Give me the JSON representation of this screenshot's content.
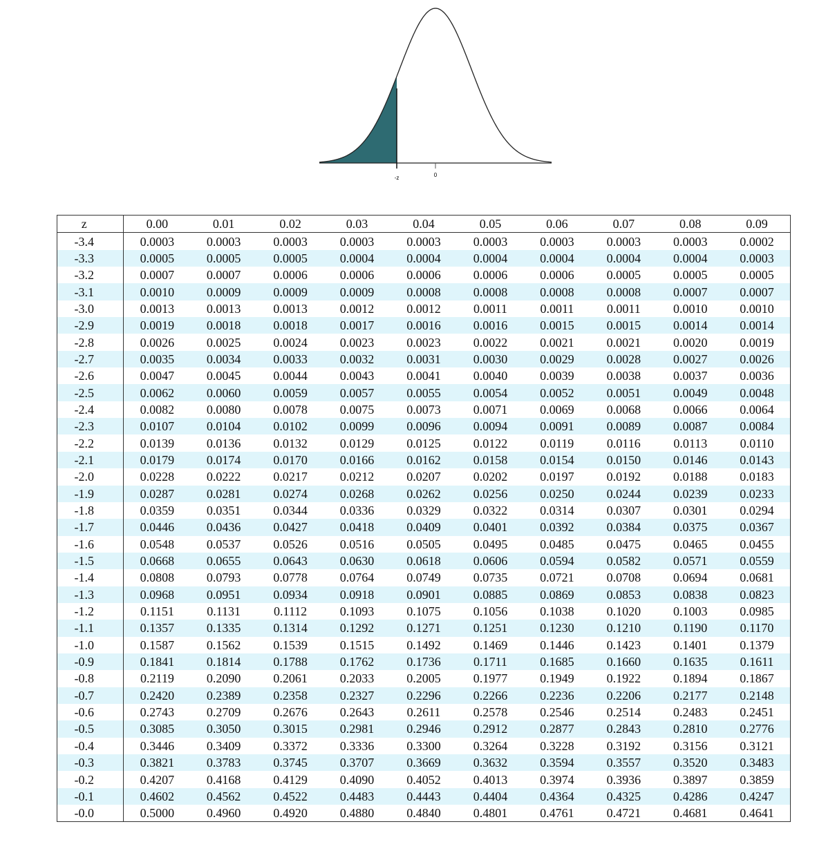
{
  "figure": {
    "neg_label": "-z",
    "zero_label": "0",
    "shade_color": "#2e6b72"
  },
  "table": {
    "corner_label": "z",
    "columns": [
      "0.00",
      "0.01",
      "0.02",
      "0.03",
      "0.04",
      "0.05",
      "0.06",
      "0.07",
      "0.08",
      "0.09"
    ],
    "rows": [
      {
        "z": "-3.4",
        "values": [
          "0.0003",
          "0.0003",
          "0.0003",
          "0.0003",
          "0.0003",
          "0.0003",
          "0.0003",
          "0.0003",
          "0.0003",
          "0.0002"
        ]
      },
      {
        "z": "-3.3",
        "values": [
          "0.0005",
          "0.0005",
          "0.0005",
          "0.0004",
          "0.0004",
          "0.0004",
          "0.0004",
          "0.0004",
          "0.0004",
          "0.0003"
        ]
      },
      {
        "z": "-3.2",
        "values": [
          "0.0007",
          "0.0007",
          "0.0006",
          "0.0006",
          "0.0006",
          "0.0006",
          "0.0006",
          "0.0005",
          "0.0005",
          "0.0005"
        ]
      },
      {
        "z": "-3.1",
        "values": [
          "0.0010",
          "0.0009",
          "0.0009",
          "0.0009",
          "0.0008",
          "0.0008",
          "0.0008",
          "0.0008",
          "0.0007",
          "0.0007"
        ]
      },
      {
        "z": "-3.0",
        "values": [
          "0.0013",
          "0.0013",
          "0.0013",
          "0.0012",
          "0.0012",
          "0.0011",
          "0.0011",
          "0.0011",
          "0.0010",
          "0.0010"
        ]
      },
      {
        "z": "-2.9",
        "values": [
          "0.0019",
          "0.0018",
          "0.0018",
          "0.0017",
          "0.0016",
          "0.0016",
          "0.0015",
          "0.0015",
          "0.0014",
          "0.0014"
        ]
      },
      {
        "z": "-2.8",
        "values": [
          "0.0026",
          "0.0025",
          "0.0024",
          "0.0023",
          "0.0023",
          "0.0022",
          "0.0021",
          "0.0021",
          "0.0020",
          "0.0019"
        ]
      },
      {
        "z": "-2.7",
        "values": [
          "0.0035",
          "0.0034",
          "0.0033",
          "0.0032",
          "0.0031",
          "0.0030",
          "0.0029",
          "0.0028",
          "0.0027",
          "0.0026"
        ]
      },
      {
        "z": "-2.6",
        "values": [
          "0.0047",
          "0.0045",
          "0.0044",
          "0.0043",
          "0.0041",
          "0.0040",
          "0.0039",
          "0.0038",
          "0.0037",
          "0.0036"
        ]
      },
      {
        "z": "-2.5",
        "values": [
          "0.0062",
          "0.0060",
          "0.0059",
          "0.0057",
          "0.0055",
          "0.0054",
          "0.0052",
          "0.0051",
          "0.0049",
          "0.0048"
        ]
      },
      {
        "z": "-2.4",
        "values": [
          "0.0082",
          "0.0080",
          "0.0078",
          "0.0075",
          "0.0073",
          "0.0071",
          "0.0069",
          "0.0068",
          "0.0066",
          "0.0064"
        ]
      },
      {
        "z": "-2.3",
        "values": [
          "0.0107",
          "0.0104",
          "0.0102",
          "0.0099",
          "0.0096",
          "0.0094",
          "0.0091",
          "0.0089",
          "0.0087",
          "0.0084"
        ]
      },
      {
        "z": "-2.2",
        "values": [
          "0.0139",
          "0.0136",
          "0.0132",
          "0.0129",
          "0.0125",
          "0.0122",
          "0.0119",
          "0.0116",
          "0.0113",
          "0.0110"
        ]
      },
      {
        "z": "-2.1",
        "values": [
          "0.0179",
          "0.0174",
          "0.0170",
          "0.0166",
          "0.0162",
          "0.0158",
          "0.0154",
          "0.0150",
          "0.0146",
          "0.0143"
        ]
      },
      {
        "z": "-2.0",
        "values": [
          "0.0228",
          "0.0222",
          "0.0217",
          "0.0212",
          "0.0207",
          "0.0202",
          "0.0197",
          "0.0192",
          "0.0188",
          "0.0183"
        ]
      },
      {
        "z": "-1.9",
        "values": [
          "0.0287",
          "0.0281",
          "0.0274",
          "0.0268",
          "0.0262",
          "0.0256",
          "0.0250",
          "0.0244",
          "0.0239",
          "0.0233"
        ]
      },
      {
        "z": "-1.8",
        "values": [
          "0.0359",
          "0.0351",
          "0.0344",
          "0.0336",
          "0.0329",
          "0.0322",
          "0.0314",
          "0.0307",
          "0.0301",
          "0.0294"
        ]
      },
      {
        "z": "-1.7",
        "values": [
          "0.0446",
          "0.0436",
          "0.0427",
          "0.0418",
          "0.0409",
          "0.0401",
          "0.0392",
          "0.0384",
          "0.0375",
          "0.0367"
        ]
      },
      {
        "z": "-1.6",
        "values": [
          "0.0548",
          "0.0537",
          "0.0526",
          "0.0516",
          "0.0505",
          "0.0495",
          "0.0485",
          "0.0475",
          "0.0465",
          "0.0455"
        ]
      },
      {
        "z": "-1.5",
        "values": [
          "0.0668",
          "0.0655",
          "0.0643",
          "0.0630",
          "0.0618",
          "0.0606",
          "0.0594",
          "0.0582",
          "0.0571",
          "0.0559"
        ]
      },
      {
        "z": "-1.4",
        "values": [
          "0.0808",
          "0.0793",
          "0.0778",
          "0.0764",
          "0.0749",
          "0.0735",
          "0.0721",
          "0.0708",
          "0.0694",
          "0.0681"
        ]
      },
      {
        "z": "-1.3",
        "values": [
          "0.0968",
          "0.0951",
          "0.0934",
          "0.0918",
          "0.0901",
          "0.0885",
          "0.0869",
          "0.0853",
          "0.0838",
          "0.0823"
        ]
      },
      {
        "z": "-1.2",
        "values": [
          "0.1151",
          "0.1131",
          "0.1112",
          "0.1093",
          "0.1075",
          "0.1056",
          "0.1038",
          "0.1020",
          "0.1003",
          "0.0985"
        ]
      },
      {
        "z": "-1.1",
        "values": [
          "0.1357",
          "0.1335",
          "0.1314",
          "0.1292",
          "0.1271",
          "0.1251",
          "0.1230",
          "0.1210",
          "0.1190",
          "0.1170"
        ]
      },
      {
        "z": "-1.0",
        "values": [
          "0.1587",
          "0.1562",
          "0.1539",
          "0.1515",
          "0.1492",
          "0.1469",
          "0.1446",
          "0.1423",
          "0.1401",
          "0.1379"
        ]
      },
      {
        "z": "-0.9",
        "values": [
          "0.1841",
          "0.1814",
          "0.1788",
          "0.1762",
          "0.1736",
          "0.1711",
          "0.1685",
          "0.1660",
          "0.1635",
          "0.1611"
        ]
      },
      {
        "z": "-0.8",
        "values": [
          "0.2119",
          "0.2090",
          "0.2061",
          "0.2033",
          "0.2005",
          "0.1977",
          "0.1949",
          "0.1922",
          "0.1894",
          "0.1867"
        ]
      },
      {
        "z": "-0.7",
        "values": [
          "0.2420",
          "0.2389",
          "0.2358",
          "0.2327",
          "0.2296",
          "0.2266",
          "0.2236",
          "0.2206",
          "0.2177",
          "0.2148"
        ]
      },
      {
        "z": "-0.6",
        "values": [
          "0.2743",
          "0.2709",
          "0.2676",
          "0.2643",
          "0.2611",
          "0.2578",
          "0.2546",
          "0.2514",
          "0.2483",
          "0.2451"
        ]
      },
      {
        "z": "-0.5",
        "values": [
          "0.3085",
          "0.3050",
          "0.3015",
          "0.2981",
          "0.2946",
          "0.2912",
          "0.2877",
          "0.2843",
          "0.2810",
          "0.2776"
        ]
      },
      {
        "z": "-0.4",
        "values": [
          "0.3446",
          "0.3409",
          "0.3372",
          "0.3336",
          "0.3300",
          "0.3264",
          "0.3228",
          "0.3192",
          "0.3156",
          "0.3121"
        ]
      },
      {
        "z": "-0.3",
        "values": [
          "0.3821",
          "0.3783",
          "0.3745",
          "0.3707",
          "0.3669",
          "0.3632",
          "0.3594",
          "0.3557",
          "0.3520",
          "0.3483"
        ]
      },
      {
        "z": "-0.2",
        "values": [
          "0.4207",
          "0.4168",
          "0.4129",
          "0.4090",
          "0.4052",
          "0.4013",
          "0.3974",
          "0.3936",
          "0.3897",
          "0.3859"
        ]
      },
      {
        "z": "-0.1",
        "values": [
          "0.4602",
          "0.4562",
          "0.4522",
          "0.4483",
          "0.4443",
          "0.4404",
          "0.4364",
          "0.4325",
          "0.4286",
          "0.4247"
        ]
      },
      {
        "z": "-0.0",
        "values": [
          "0.5000",
          "0.4960",
          "0.4920",
          "0.4880",
          "0.4840",
          "0.4801",
          "0.4761",
          "0.4721",
          "0.4681",
          "0.4641"
        ]
      }
    ]
  }
}
